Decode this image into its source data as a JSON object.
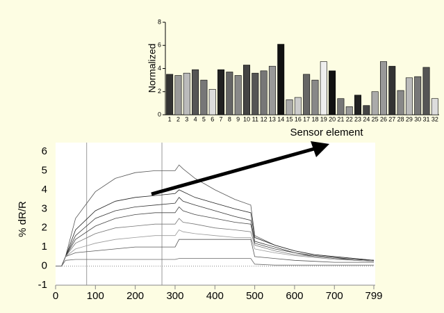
{
  "chart_data": [
    {
      "type": "bar",
      "ylabel": "Normalized",
      "xlabel": "Sensor element",
      "categories": [
        "1",
        "2",
        "3",
        "4",
        "5",
        "6",
        "7",
        "8",
        "9",
        "10",
        "11",
        "12",
        "13",
        "14",
        "15",
        "16",
        "17",
        "18",
        "19",
        "20",
        "21",
        "22",
        "23",
        "24",
        "25",
        "26",
        "27",
        "28",
        "29",
        "30",
        "31",
        "32"
      ],
      "values": [
        3.5,
        3.4,
        3.6,
        3.9,
        3.0,
        2.2,
        3.9,
        3.7,
        3.4,
        4.3,
        3.6,
        3.8,
        4.2,
        6.1,
        1.3,
        1.5,
        3.5,
        3.0,
        4.6,
        3.8,
        1.4,
        0.7,
        1.7,
        0.8,
        2.0,
        4.6,
        4.2,
        2.1,
        3.2,
        3.3,
        4.1,
        1.4
      ],
      "colors": [
        "#333333",
        "#999999",
        "#bbbbbb",
        "#555555",
        "#777777",
        "#dddddd",
        "#222222",
        "#666666",
        "#888888",
        "#444444",
        "#555555",
        "#777777",
        "#999999",
        "#111111",
        "#aaaaaa",
        "#cccccc",
        "#666666",
        "#888888",
        "#eeeeee",
        "#111111",
        "#777777",
        "#999999",
        "#222222",
        "#444444",
        "#aaaaaa",
        "#999999",
        "#333333",
        "#888888",
        "#bbbbbb",
        "#777777",
        "#555555",
        "#dddddd"
      ],
      "ylim": [
        0,
        8
      ],
      "yticks": [
        0,
        2,
        4,
        6,
        8
      ]
    },
    {
      "type": "line",
      "ylabel": "% dR/R",
      "x": [
        0,
        15,
        25,
        50,
        100,
        150,
        200,
        250,
        300,
        310,
        320,
        350,
        400,
        450,
        490,
        500,
        550,
        600,
        650,
        700,
        750,
        799
      ],
      "series": [
        {
          "color": "#555555",
          "values": [
            0,
            0,
            0.5,
            2.5,
            3.9,
            4.6,
            4.9,
            5.0,
            5.0,
            5.3,
            5.1,
            4.6,
            4.0,
            3.5,
            3.2,
            1.6,
            1.1,
            0.8,
            0.6,
            0.5,
            0.4,
            0.3
          ]
        },
        {
          "color": "#222222",
          "values": [
            0,
            0,
            0.5,
            1.9,
            2.9,
            3.4,
            3.6,
            3.7,
            3.8,
            4.0,
            3.9,
            3.6,
            3.3,
            3.0,
            2.8,
            1.5,
            1.1,
            0.8,
            0.6,
            0.5,
            0.4,
            0.3
          ]
        },
        {
          "color": "#333333",
          "values": [
            0,
            0,
            0.5,
            1.6,
            2.5,
            2.9,
            3.1,
            3.2,
            3.3,
            3.6,
            3.4,
            3.2,
            2.9,
            2.6,
            2.4,
            1.3,
            1.0,
            0.7,
            0.55,
            0.45,
            0.35,
            0.3
          ]
        },
        {
          "color": "#444444",
          "values": [
            0,
            0,
            0.5,
            1.4,
            2.1,
            2.5,
            2.7,
            2.8,
            2.8,
            3.1,
            2.9,
            2.7,
            2.5,
            2.3,
            2.2,
            1.2,
            0.9,
            0.7,
            0.5,
            0.4,
            0.35,
            0.3
          ]
        },
        {
          "color": "#777777",
          "values": [
            0,
            0,
            0.5,
            1.2,
            1.7,
            2.0,
            2.1,
            2.2,
            2.2,
            2.5,
            2.3,
            2.2,
            2.0,
            1.9,
            1.8,
            1.1,
            0.8,
            0.6,
            0.5,
            0.4,
            0.3,
            0.25
          ]
        },
        {
          "color": "#999999",
          "values": [
            0,
            0,
            0.5,
            0.9,
            1.2,
            1.4,
            1.5,
            1.6,
            1.6,
            1.9,
            1.8,
            1.7,
            1.6,
            1.5,
            1.5,
            0.9,
            0.7,
            0.55,
            0.45,
            0.35,
            0.3,
            0.25
          ]
        },
        {
          "color": "#555555",
          "values": [
            0,
            0,
            0.5,
            0.7,
            0.8,
            0.9,
            1.0,
            1.0,
            1.0,
            1.4,
            1.4,
            1.4,
            1.4,
            1.4,
            1.4,
            0.5,
            0.4,
            0.3,
            0.25,
            0.2,
            0.2,
            0.2
          ]
        },
        {
          "color": "#666666",
          "values": [
            0,
            0,
            0.3,
            0.35,
            0.35,
            0.35,
            0.35,
            0.35,
            0.35,
            0.4,
            0.4,
            0.4,
            0.4,
            0.4,
            0.4,
            0.1,
            0.05,
            0.05,
            0.05,
            0.05,
            0.05,
            0.05
          ]
        }
      ],
      "xlim": [
        0,
        799
      ],
      "xticks": [
        0,
        100,
        200,
        300,
        400,
        500,
        600,
        700,
        799
      ],
      "ylim": [
        -1,
        6
      ],
      "yticks": [
        -1,
        0,
        1,
        2,
        3,
        4,
        5,
        6
      ],
      "vlines": [
        78,
        267
      ],
      "zero_line": true
    }
  ]
}
